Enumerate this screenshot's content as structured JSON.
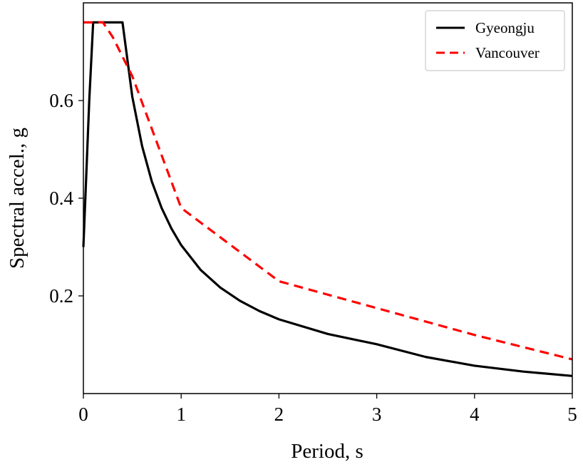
{
  "chart_data": {
    "type": "line",
    "xlabel": "Period, s",
    "ylabel": "Spectral accel., g",
    "xlim": [
      0,
      5
    ],
    "ylim": [
      0,
      0.8
    ],
    "x_ticks": [
      0,
      1,
      2,
      3,
      4,
      5
    ],
    "x_tick_labels": [
      "0",
      "1",
      "2",
      "3",
      "4",
      "5"
    ],
    "y_ticks": [
      0.2,
      0.4,
      0.6
    ],
    "y_tick_labels": [
      "0.2",
      "0.4",
      "0.6"
    ],
    "grid": false,
    "legend_position": "top-right",
    "series": [
      {
        "name": "Gyeongju",
        "color": "#000000",
        "style": "solid",
        "x": [
          0,
          0.06,
          0.1,
          0.2,
          0.3,
          0.4,
          0.5,
          0.6,
          0.7,
          0.8,
          0.9,
          1.0,
          1.2,
          1.4,
          1.6,
          1.8,
          2.0,
          2.5,
          3.0,
          3.5,
          4.0,
          4.5,
          5.0
        ],
        "y": [
          0.3,
          0.6,
          0.76,
          0.76,
          0.76,
          0.76,
          0.608,
          0.507,
          0.434,
          0.38,
          0.338,
          0.304,
          0.253,
          0.217,
          0.19,
          0.169,
          0.152,
          0.122,
          0.101,
          0.075,
          0.057,
          0.045,
          0.036
        ]
      },
      {
        "name": "Vancouver",
        "color": "#ff0000",
        "style": "dashed",
        "x": [
          0,
          0.2,
          0.3,
          0.4,
          0.5,
          1.0,
          2.0,
          3.0,
          4.0,
          5.0
        ],
        "y": [
          0.76,
          0.76,
          0.73,
          0.69,
          0.65,
          0.38,
          0.23,
          0.175,
          0.12,
          0.07
        ]
      }
    ]
  }
}
